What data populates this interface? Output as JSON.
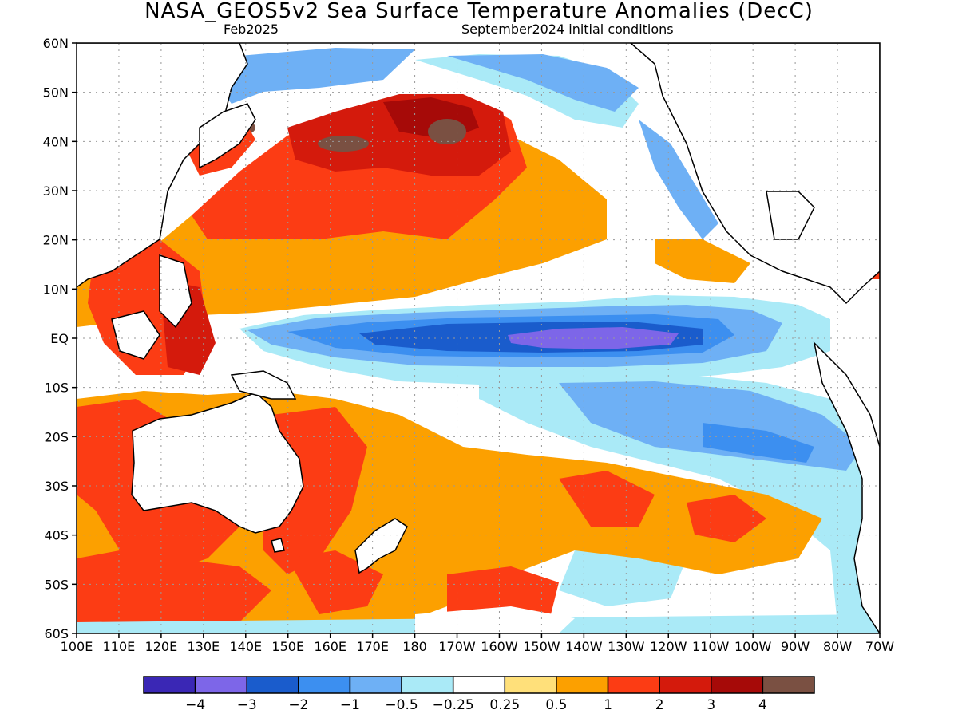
{
  "title": "NASA_GEOS5v2 Sea Surface Temperature Anomalies (DecC)",
  "subtitle_left": "Feb2025",
  "subtitle_right": "September2024 initial conditions",
  "map": {
    "lat_ticks": [
      "60N",
      "50N",
      "40N",
      "30N",
      "20N",
      "10N",
      "EQ",
      "10S",
      "20S",
      "30S",
      "40S",
      "50S",
      "60S"
    ],
    "lon_ticks": [
      "100E",
      "110E",
      "120E",
      "130E",
      "140E",
      "150E",
      "160E",
      "170E",
      "180",
      "170W",
      "160W",
      "150W",
      "140W",
      "130W",
      "120W",
      "110W",
      "100W",
      "90W",
      "80W",
      "70W"
    ],
    "lat_range": [
      -60,
      60
    ],
    "lon_range": [
      100,
      290
    ],
    "grid": "dotted"
  },
  "colorbar": {
    "colors": [
      "#3a27b5",
      "#7d66e8",
      "#1a5ccc",
      "#3c8ff0",
      "#6eb0f5",
      "#aaeaf7",
      "#ffffff",
      "#ffe07a",
      "#fca000",
      "#fc3c14",
      "#d41a0c",
      "#a60a08",
      "#7a5042"
    ],
    "labels": [
      "-4",
      "-3",
      "-2",
      "-1",
      "-0.5",
      "-0.25",
      "0.25",
      "0.5",
      "1",
      "2",
      "3",
      "4"
    ]
  }
}
